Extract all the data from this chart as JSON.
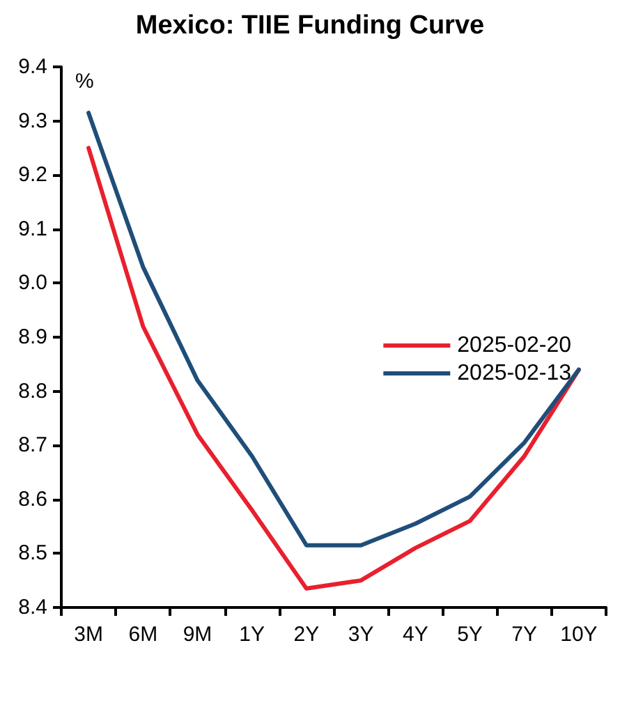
{
  "chart_data": {
    "type": "line",
    "title": "Mexico: TIIE Funding Curve",
    "ylabel": "%",
    "categories": [
      "3M",
      "6M",
      "9M",
      "1Y",
      "2Y",
      "3Y",
      "4Y",
      "5Y",
      "7Y",
      "10Y"
    ],
    "series": [
      {
        "name": "2025-02-20",
        "color": "#e8202e",
        "values": [
          9.25,
          8.92,
          8.72,
          8.58,
          8.435,
          8.45,
          8.51,
          8.56,
          8.68,
          8.84
        ]
      },
      {
        "name": "2025-02-13",
        "color": "#1f4e79",
        "values": [
          9.315,
          9.03,
          8.82,
          8.68,
          8.515,
          8.515,
          8.555,
          8.605,
          8.705,
          8.84
        ]
      }
    ],
    "ylim": [
      8.4,
      9.4
    ],
    "yticks": [
      {
        "value": 8.4,
        "label": "8.4"
      },
      {
        "value": 8.5,
        "label": "8.5"
      },
      {
        "value": 8.6,
        "label": "8.6"
      },
      {
        "value": 8.7,
        "label": "8.7"
      },
      {
        "value": 8.8,
        "label": "8.8"
      },
      {
        "value": 8.9,
        "label": "8.9"
      },
      {
        "value": 9,
        "label": "9.0"
      },
      {
        "value": 9.1,
        "label": "9.1"
      },
      {
        "value": 9.2,
        "label": "9.2"
      },
      {
        "value": 9.3,
        "label": "9.3"
      },
      {
        "value": 9.4,
        "label": "9.4"
      }
    ],
    "grid": false,
    "legend": "right",
    "marker": "none",
    "line_style": "solid"
  }
}
